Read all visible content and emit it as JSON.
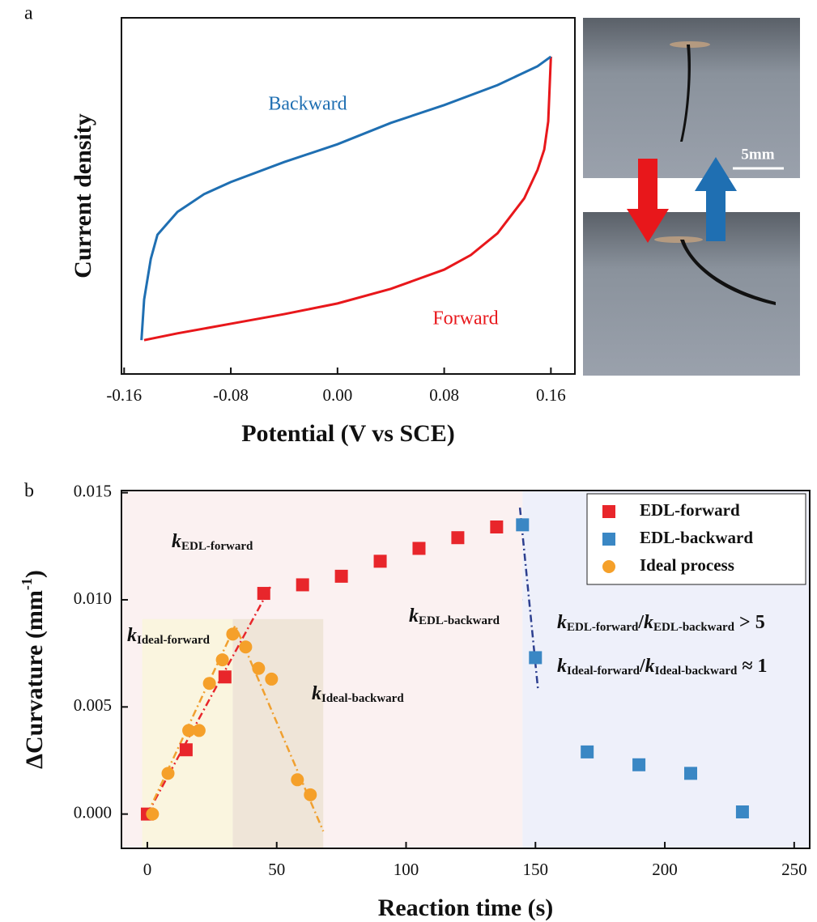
{
  "chart_data": [
    {
      "type": "line",
      "panel": "a",
      "xlabel": "Potential (V vs SCE)",
      "ylabel": "Current density",
      "xlim": [
        -0.162,
        0.178
      ],
      "ylim": [
        0,
        1
      ],
      "xticks": [
        -0.16,
        -0.08,
        {
          "value": 0,
          "label": "0.00"
        },
        0.08,
        0.16
      ],
      "series": [
        {
          "name": "Forward",
          "color": "#e8171b",
          "x": [
            -0.145,
            -0.12,
            -0.08,
            -0.04,
            0.0,
            0.04,
            0.08,
            0.1,
            0.12,
            0.14,
            0.15,
            0.155,
            0.158,
            0.16
          ],
          "values": [
            0.095,
            0.114,
            0.141,
            0.168,
            0.198,
            0.239,
            0.293,
            0.334,
            0.395,
            0.493,
            0.573,
            0.63,
            0.709,
            0.891
          ]
        },
        {
          "name": "Backward",
          "color": "#1f6fb2",
          "x": [
            0.16,
            0.15,
            0.12,
            0.08,
            0.04,
            0.0,
            -0.04,
            -0.08,
            -0.1,
            -0.12,
            -0.135,
            -0.14,
            -0.145,
            -0.147
          ],
          "values": [
            0.891,
            0.864,
            0.811,
            0.755,
            0.705,
            0.645,
            0.595,
            0.539,
            0.505,
            0.455,
            0.391,
            0.323,
            0.209,
            0.095
          ]
        }
      ]
    },
    {
      "type": "scatter",
      "panel": "b",
      "xlabel": "Reaction time (s)",
      "ylabel": [
        "ΔCurvature (mm",
        "-1",
        ")"
      ],
      "xlim": [
        -10,
        256
      ],
      "ylim": [
        -0.0016,
        0.0151
      ],
      "xticks": [
        0,
        50,
        100,
        150,
        200,
        250
      ],
      "yticks": [
        {
          "value": 0,
          "label": "0.000"
        },
        0.005,
        {
          "value": 0.01,
          "label": "0.010"
        },
        0.015
      ],
      "legend": "upper right",
      "regions": [
        {
          "color": "#fbf1f1",
          "x": [
            -10,
            145
          ],
          "y": [
            -0.0016,
            0.0151
          ]
        },
        {
          "color": "#eef0fa",
          "x": [
            145,
            256
          ],
          "y": [
            -0.0016,
            0.0151
          ]
        },
        {
          "color": "#faf5df",
          "x": [
            -2,
            33
          ],
          "y": [
            -0.0016,
            0.0091
          ]
        },
        {
          "color": "#efe5d8",
          "x": [
            33,
            68
          ],
          "y": [
            -0.0016,
            0.0091
          ]
        }
      ],
      "series": [
        {
          "name": "EDL-forward",
          "color": "#e8262b",
          "marker": "square",
          "x": [
            0,
            15,
            30,
            45,
            60,
            75,
            90,
            105,
            120,
            135
          ],
          "values": [
            0,
            0.003,
            0.0064,
            0.0103,
            0.0107,
            0.0111,
            0.0118,
            0.0124,
            0.0129,
            0.0134
          ]
        },
        {
          "name": "EDL-backward",
          "color": "#3a87c4",
          "marker": "square",
          "x": [
            145,
            150,
            170,
            190,
            210,
            230
          ],
          "values": [
            0.0135,
            0.0073,
            0.0029,
            0.0023,
            0.0019,
            0.0001
          ]
        },
        {
          "name": "Ideal process",
          "color": "#f5a02a",
          "marker": "circle",
          "x": [
            2,
            8,
            16,
            20,
            24,
            29,
            33,
            38,
            43,
            48,
            58,
            63
          ],
          "values": [
            0,
            0.0019,
            0.0039,
            0.0039,
            0.0061,
            0.0072,
            0.0084,
            0.0078,
            0.0068,
            0.0063,
            0.0016,
            0.0009
          ]
        }
      ],
      "fits": [
        {
          "color": "#e8262b",
          "x": [
            0,
            48
          ],
          "values": [
            0,
            0.0107
          ]
        },
        {
          "color": "#f0a030",
          "x": [
            0,
            34,
            68
          ],
          "values": [
            0,
            0.0088,
            -0.0008
          ]
        },
        {
          "color": "#2d3f8f",
          "x": [
            144,
            151
          ],
          "values": [
            0.0143,
            0.0058
          ]
        }
      ],
      "annotations": [
        [
          "k",
          "EDL-forward"
        ],
        [
          "k",
          "Ideal-forward"
        ],
        [
          "k",
          "Ideal-backward"
        ],
        [
          "k",
          "EDL-backward"
        ],
        [
          "k",
          "EDL-forward",
          "/",
          "k",
          "EDL-backward",
          " > 5"
        ],
        [
          "k",
          "Ideal-forward",
          "/",
          "k",
          "Ideal-backward",
          " ≈ 1"
        ]
      ]
    }
  ],
  "photos": {
    "scale_bar": "5mm"
  }
}
